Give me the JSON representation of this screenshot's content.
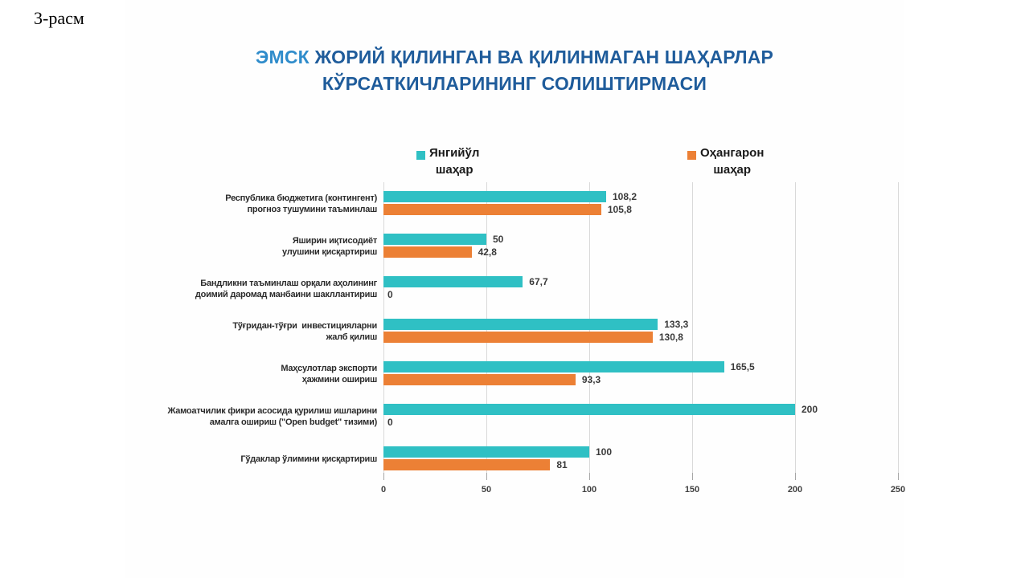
{
  "caption": "3-расм",
  "title": {
    "accent": "ЭМСК",
    "line1_rest": " ЖОРИЙ ҚИЛИНГАН ВА ҚИЛИНМАГАН ШАҲАРЛАР",
    "line2": "КЎРСАТКИЧЛАРИНИНГ СОЛИШТИРМАСИ"
  },
  "legend": [
    {
      "label": "Янгийўл\nшаҳар",
      "color": "#2fc0c4"
    },
    {
      "label": "Оҳангарон\nшаҳар",
      "color": "#ec8035"
    }
  ],
  "chart_data": {
    "type": "bar",
    "orientation": "horizontal",
    "title": "ЭМСК ЖОРИЙ ҚИЛИНГАН ВА ҚИЛИНМАГАН ШАҲАРЛАР КЎРСАТКИЧЛАРИНИНГ СОЛИШТИРМАСИ",
    "categories": [
      "Республика бюджетига (контингент)\nпрогноз тушумини таъминлаш",
      "Яширин иқтисодиёт\nулушини қисқартириш",
      "Бандликни таъминлаш орқали аҳолининг\nдоимий даромад манбаини шакллантириш",
      "Тўғридан-тўғри  инвестицияларни\nжалб қилиш",
      "Маҳсулотлар экспорти\nҳажмини ошириш",
      "Жамоатчилик фикри асосида қурилиш ишларини\nамалга ошириш (\"Open budget\" тизими)",
      "Гўдаклар ўлимини қисқартириш"
    ],
    "series": [
      {
        "name": "Янгийўл шаҳар",
        "color": "#2fc0c4",
        "values": [
          108.2,
          50,
          67.7,
          133.3,
          165.5,
          200,
          100
        ],
        "value_labels": [
          "108,2",
          "50",
          "67,7",
          "133,3",
          "165,5",
          "200",
          "100"
        ]
      },
      {
        "name": "Оҳангарон шаҳар",
        "color": "#ec8035",
        "values": [
          105.8,
          42.8,
          0,
          130.8,
          93.3,
          0,
          81
        ],
        "value_labels": [
          "105,8",
          "42,8",
          "0",
          "130,8",
          "93,3",
          "0",
          "81"
        ]
      }
    ],
    "xlim": [
      0,
      250
    ],
    "xticks": [
      0,
      50,
      100,
      150,
      200,
      250
    ],
    "grid": true,
    "legend_position": "top"
  }
}
